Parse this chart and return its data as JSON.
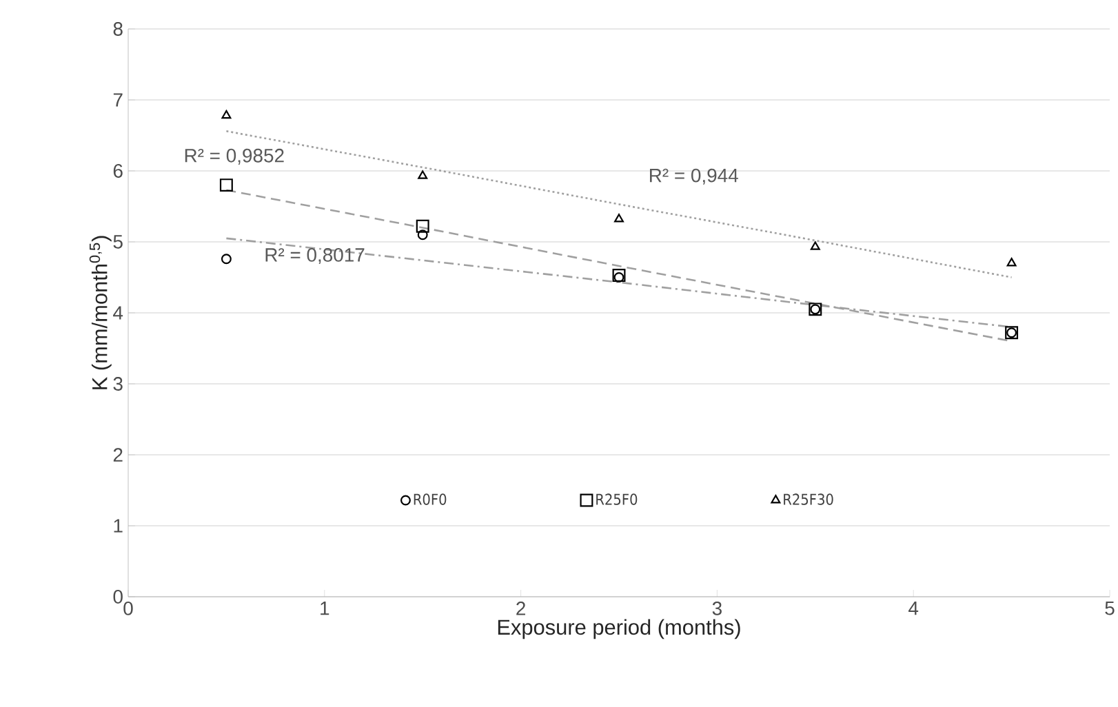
{
  "chart_data": {
    "type": "scatter",
    "xlabel": "Exposure period (months)",
    "ylabel": "K (mm/month$^{0,5}$)",
    "xlim": [
      0,
      5
    ],
    "xticks": [
      0,
      1,
      2,
      3,
      4,
      5
    ],
    "ylim": [
      0,
      8
    ],
    "yticks": [
      0,
      1,
      2,
      3,
      4,
      5,
      6,
      7,
      8
    ],
    "grid": "y",
    "legend": "bottom",
    "x": [
      0.5,
      1.5,
      2.5,
      3.5,
      4.5
    ],
    "series": [
      {
        "name": "R0F0",
        "color": "#000000",
        "marker": "circle",
        "values": [
          4.76,
          5.1,
          4.5,
          4.05,
          3.72
        ]
      },
      {
        "name": "R25F0",
        "color": "#000000",
        "marker": "square",
        "values": [
          5.8,
          5.22,
          4.53,
          4.05,
          3.72
        ]
      },
      {
        "name": "R25F30",
        "color": "#000000",
        "marker": "triangle",
        "values": [
          6.78,
          5.93,
          5.32,
          4.93,
          4.7
        ]
      },
      {
        "type": "line",
        "color": "#a0a0a0",
        "line_style": "dashdot",
        "marker": "none",
        "values": [
          5.05,
          4.74,
          4.43,
          4.11,
          3.8
        ]
      },
      {
        "type": "line",
        "color": "#a0a0a0",
        "line_style": "dashed",
        "marker": "none",
        "values": [
          5.73,
          5.2,
          4.66,
          4.13,
          3.6
        ]
      },
      {
        "type": "line",
        "color": "#a0a0a0",
        "line_style": "dotted",
        "marker": "none",
        "values": [
          6.56,
          6.05,
          5.53,
          5.02,
          4.5
        ]
      }
    ],
    "annotations": [
      "R² = 0,9852",
      "R² = 0,8017",
      "R² = 0,944"
    ]
  }
}
